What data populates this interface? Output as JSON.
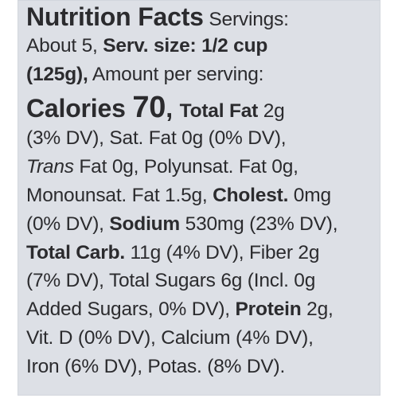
{
  "panel": {
    "background": "#dde0e6",
    "text_color": "#2b2b2e"
  },
  "lines": [
    {
      "seg": [
        "Nutrition Facts",
        " Servings:"
      ]
    },
    {
      "seg": [
        "About 5, ",
        "Serv. size: 1/2 cup"
      ]
    },
    {
      "seg": [
        "(125g),",
        " Amount per serving:"
      ]
    },
    {
      "seg": [
        "Calories ",
        "70",
        ", ",
        "Total Fat",
        " 2g"
      ]
    },
    {
      "seg": [
        "(3% DV), Sat. Fat 0g (0% DV),"
      ]
    },
    {
      "seg": [
        "Trans",
        " Fat 0g, Polyunsat. Fat 0g,"
      ]
    },
    {
      "seg": [
        "Monounsat. Fat 1.5g, ",
        "Cholest.",
        " 0mg"
      ]
    },
    {
      "seg": [
        "(0% DV), ",
        "Sodium",
        " 530mg (23% DV),"
      ]
    },
    {
      "seg": [
        "Total Carb.",
        " 11g (4% DV), Fiber 2g"
      ]
    },
    {
      "seg": [
        "(7% DV), Total Sugars 6g (Incl. 0g"
      ]
    },
    {
      "seg": [
        "Added Sugars, 0% DV), ",
        "Protein",
        " 2g,"
      ]
    },
    {
      "seg": [
        "Vit. D (0% DV), Calcium (4% DV),"
      ]
    },
    {
      "seg": [
        "Iron (6% DV), Potas. (8% DV)."
      ]
    }
  ]
}
